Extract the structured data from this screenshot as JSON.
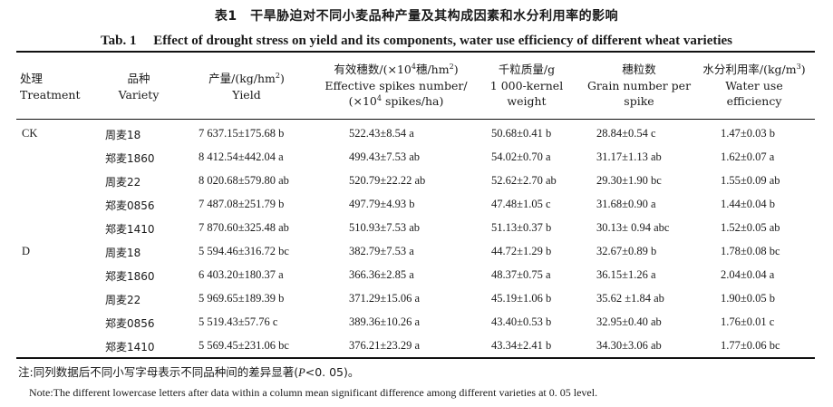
{
  "title_cn": "表1　干旱胁迫对不同小麦品种产量及其构成因素和水分利用率的影响",
  "title_en": "Tab. 1　 Effect of drought stress on yield and its components, water use efficiency of different wheat varieties",
  "headers": {
    "treatment": {
      "cn": "处理",
      "en": "Treatment"
    },
    "variety": {
      "cn": "品种",
      "en": "Variety"
    },
    "yield": {
      "line1_pre": "产量/(kg/hm",
      "line1_sup": "2",
      "line1_post": ")",
      "line2": "Yield"
    },
    "spikes": {
      "line1_pre": "有效穗数/(×10",
      "line1_sup": "4",
      "line1_mid": "穗/hm",
      "line1_sup2": "2",
      "line1_post": ")",
      "line2": "Effective spikes number/",
      "line3_pre": "(×10",
      "line3_sup": "4",
      "line3_post": " spikes/ha)"
    },
    "kernel_weight": {
      "line1": "千粒质量/g",
      "line2": "1 000-kernel",
      "line3": "weight"
    },
    "grain_number": {
      "line1": "穗粒数",
      "line2": "Grain number per",
      "line3": "spike"
    },
    "wue": {
      "line1_pre": "水分利用率/(kg/m",
      "line1_sup": "3",
      "line1_post": ")",
      "line2": "Water use",
      "line3": "efficiency"
    }
  },
  "rows": [
    {
      "treatment": "CK",
      "variety": "周麦18",
      "yield": "7 637.15±175.68 b",
      "spikes": "522.43±8.54 a",
      "kernel_weight": "50.68±0.41 b",
      "grain_number": "28.84±0.54 c",
      "wue": "1.47±0.03 b"
    },
    {
      "treatment": "",
      "variety": "郑麦1860",
      "yield": "8 412.54±442.04 a",
      "spikes": "499.43±7.53 ab",
      "kernel_weight": "54.02±0.70 a",
      "grain_number": "31.17±1.13 ab",
      "wue": "1.62±0.07 a"
    },
    {
      "treatment": "",
      "variety": "周麦22",
      "yield": "8 020.68±579.80 ab",
      "spikes": "520.79±22.22 ab",
      "kernel_weight": "52.62±2.70 ab",
      "grain_number": "29.30±1.90 bc",
      "wue": "1.55±0.09 ab"
    },
    {
      "treatment": "",
      "variety": "郑麦0856",
      "yield": "7 487.08±251.79 b",
      "spikes": "497.79±4.93 b",
      "kernel_weight": "47.48±1.05 c",
      "grain_number": "31.68±0.90 a",
      "wue": "1.44±0.04 b"
    },
    {
      "treatment": "",
      "variety": "郑麦1410",
      "yield": "7 870.60±325.48 ab",
      "spikes": "510.93±7.53 ab",
      "kernel_weight": "51.13±0.37 b",
      "grain_number": "30.13± 0.94 abc",
      "wue": "1.52±0.05 ab"
    },
    {
      "treatment": "D",
      "variety": "周麦18",
      "yield": "5 594.46±316.72 bc",
      "spikes": "382.79±7.53 a",
      "kernel_weight": "44.72±1.29 b",
      "grain_number": "32.67±0.89 b",
      "wue": "1.78±0.08 bc"
    },
    {
      "treatment": "",
      "variety": "郑麦1860",
      "yield": "6 403.20±180.37 a",
      "spikes": "366.36±2.85 a",
      "kernel_weight": "48.37±0.75 a",
      "grain_number": "36.15±1.26 a",
      "wue": "2.04±0.04 a"
    },
    {
      "treatment": "",
      "variety": "周麦22",
      "yield": "5 969.65±189.39 b",
      "spikes": "371.29±15.06 a",
      "kernel_weight": "45.19±1.06 b",
      "grain_number": "35.62 ±1.84 ab",
      "wue": "1.90±0.05 b"
    },
    {
      "treatment": "",
      "variety": "郑麦0856",
      "yield": "5 519.43±57.76 c",
      "spikes": "389.36±10.26 a",
      "kernel_weight": "43.40±0.53 b",
      "grain_number": "32.95±0.40 ab",
      "wue": "1.76±0.01 c"
    },
    {
      "treatment": "",
      "variety": "郑麦1410",
      "yield": "5 569.45±231.06 bc",
      "spikes": "376.21±23.29 a",
      "kernel_weight": "43.34±2.41 b",
      "grain_number": "34.30±3.06 ab",
      "wue": "1.77±0.06 bc"
    }
  ],
  "note_cn_pre": "注:同列数据后不同小写字母表示不同品种间的差异显著(",
  "note_cn_p": "P",
  "note_cn_post": "<0. 05)。",
  "note_en": "Note:The different lowercase letters after data within a column mean significant difference among different varieties at 0. 05 level."
}
